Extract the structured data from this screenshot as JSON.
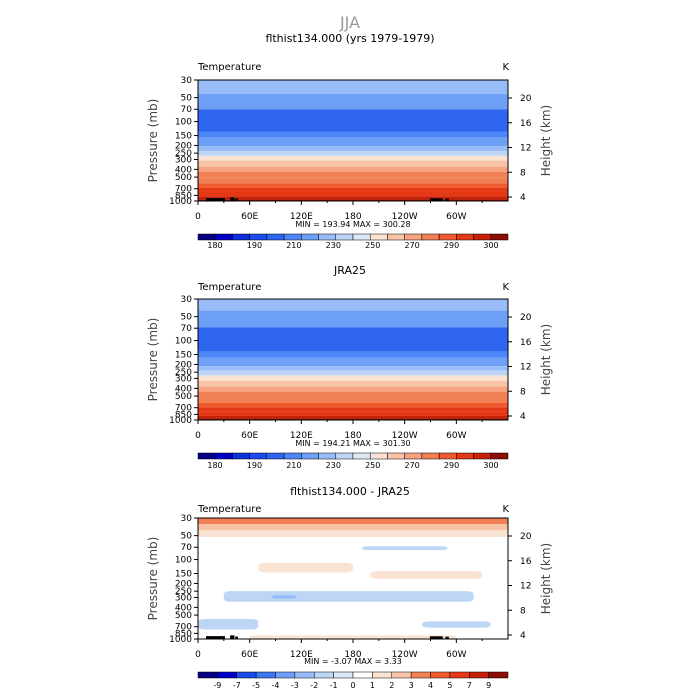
{
  "figure": {
    "title": "JJA"
  },
  "colors": {
    "abs": [
      "#04007f",
      "#0000c4",
      "#0d2fdc",
      "#1b4be9",
      "#2f66f0",
      "#4c86f7",
      "#6fa0f7",
      "#97bcf7",
      "#bed6f6",
      "#dde8f6",
      "#fbe3d4",
      "#f8c4a8",
      "#f6a37f",
      "#f28055",
      "#ef5b2f",
      "#e53915",
      "#c82008",
      "#8a0e02"
    ],
    "diff": [
      "#04007f",
      "#0000c4",
      "#1b4be9",
      "#3c76f3",
      "#6fa0f7",
      "#97bcf7",
      "#bed6f6",
      "#dde8f6",
      "#ffffff",
      "#fbe3d4",
      "#f8c4a8",
      "#f28055",
      "#ef5b2f",
      "#e53915",
      "#c82008",
      "#8a0e02"
    ]
  },
  "chart_data": [
    {
      "type": "heatmap",
      "title": "flthist134.000 (yrs 1979-1979)",
      "variable": "Temperature",
      "units": "K",
      "xlabel": "",
      "ylabel": "Pressure (mb)",
      "ylabel_right": "Height (km)",
      "x_ticks": [
        "0",
        "60E",
        "120E",
        "180",
        "120W",
        "60W"
      ],
      "y_ticks": [
        "30",
        "50",
        "70",
        "100",
        "150",
        "200",
        "250",
        "300",
        "400",
        "500",
        "700",
        "850",
        "1000"
      ],
      "y_ticks_right": [
        "20",
        "16",
        "12",
        "8",
        "4"
      ],
      "stats": "MIN = 193.94   MAX = 300.28",
      "colorbar_labels": [
        "180",
        "190",
        "210",
        "230",
        "250",
        "270",
        "290",
        "300"
      ],
      "layers": [
        {
          "p_top": 30,
          "p_bot": 45,
          "value": 220
        },
        {
          "p_top": 45,
          "p_bot": 70,
          "value": 215
        },
        {
          "p_top": 70,
          "p_bot": 135,
          "value": 205
        },
        {
          "p_top": 135,
          "p_bot": 160,
          "value": 212
        },
        {
          "p_top": 160,
          "p_bot": 205,
          "value": 215
        },
        {
          "p_top": 205,
          "p_bot": 235,
          "value": 222
        },
        {
          "p_top": 235,
          "p_bot": 270,
          "value": 228
        },
        {
          "p_top": 270,
          "p_bot": 310,
          "value": 235
        },
        {
          "p_top": 310,
          "p_bot": 370,
          "value": 245
        },
        {
          "p_top": 370,
          "p_bot": 430,
          "value": 252
        },
        {
          "p_top": 430,
          "p_bot": 510,
          "value": 262
        },
        {
          "p_top": 510,
          "p_bot": 600,
          "value": 268
        },
        {
          "p_top": 600,
          "p_bot": 680,
          "value": 275
        },
        {
          "p_top": 680,
          "p_bot": 770,
          "value": 280
        },
        {
          "p_top": 770,
          "p_bot": 870,
          "value": 285
        },
        {
          "p_top": 870,
          "p_bot": 960,
          "value": 292
        },
        {
          "p_top": 960,
          "p_bot": 1000,
          "value": 298
        }
      ]
    },
    {
      "type": "heatmap",
      "title": "JRA25",
      "variable": "Temperature",
      "units": "K",
      "xlabel": "",
      "ylabel": "Pressure (mb)",
      "ylabel_right": "Height (km)",
      "x_ticks": [
        "0",
        "60E",
        "120E",
        "180",
        "120W",
        "60W"
      ],
      "y_ticks": [
        "30",
        "50",
        "70",
        "100",
        "150",
        "200",
        "250",
        "300",
        "400",
        "500",
        "700",
        "850",
        "1000"
      ],
      "y_ticks_right": [
        "20",
        "16",
        "12",
        "8",
        "4"
      ],
      "stats": "MIN = 194.21   MAX = 301.30",
      "colorbar_labels": [
        "180",
        "190",
        "210",
        "230",
        "250",
        "270",
        "290",
        "300"
      ],
      "layers": [
        {
          "p_top": 30,
          "p_bot": 42,
          "value": 222
        },
        {
          "p_top": 42,
          "p_bot": 68,
          "value": 216
        },
        {
          "p_top": 68,
          "p_bot": 138,
          "value": 205
        },
        {
          "p_top": 138,
          "p_bot": 165,
          "value": 212
        },
        {
          "p_top": 165,
          "p_bot": 210,
          "value": 216
        },
        {
          "p_top": 210,
          "p_bot": 240,
          "value": 222
        },
        {
          "p_top": 240,
          "p_bot": 275,
          "value": 229
        },
        {
          "p_top": 275,
          "p_bot": 320,
          "value": 236
        },
        {
          "p_top": 320,
          "p_bot": 380,
          "value": 245
        },
        {
          "p_top": 380,
          "p_bot": 440,
          "value": 252
        },
        {
          "p_top": 440,
          "p_bot": 520,
          "value": 262
        },
        {
          "p_top": 520,
          "p_bot": 610,
          "value": 268
        },
        {
          "p_top": 610,
          "p_bot": 690,
          "value": 275
        },
        {
          "p_top": 690,
          "p_bot": 780,
          "value": 280
        },
        {
          "p_top": 780,
          "p_bot": 880,
          "value": 286
        },
        {
          "p_top": 880,
          "p_bot": 960,
          "value": 293
        },
        {
          "p_top": 960,
          "p_bot": 1000,
          "value": 299
        }
      ]
    },
    {
      "type": "heatmap",
      "title": "flthist134.000 - JRA25",
      "variable": "Temperature",
      "units": "K",
      "xlabel": "",
      "ylabel": "Pressure (mb)",
      "ylabel_right": "Height (km)",
      "x_ticks": [
        "0",
        "60E",
        "120E",
        "180",
        "120W",
        "60W"
      ],
      "y_ticks": [
        "30",
        "50",
        "70",
        "100",
        "150",
        "200",
        "250",
        "300",
        "400",
        "500",
        "700",
        "850",
        "1000"
      ],
      "y_ticks_right": [
        "20",
        "16",
        "12",
        "8",
        "4"
      ],
      "stats": "MIN =   -3.07   MAX =    3.33",
      "colorbar_labels": [
        "-9",
        "-7",
        "-5",
        "-4",
        "-3",
        "-2",
        "-1",
        "0",
        "1",
        "2",
        "3",
        "4",
        "5",
        "7",
        "9"
      ],
      "layers": [
        {
          "p_top": 30,
          "p_bot": 36,
          "value": 2.5
        },
        {
          "p_top": 36,
          "p_bot": 43,
          "value": 1.5
        },
        {
          "p_top": 43,
          "p_bot": 52,
          "value": 0.5
        },
        {
          "p_top": 52,
          "p_bot": 62,
          "value": -0.5
        },
        {
          "p_top": 62,
          "p_bot": 1000,
          "value": -0.5
        }
      ],
      "patches": [
        {
          "lon": [
            190,
            290
          ],
          "p": [
            68,
            76
          ],
          "value": -1.5
        },
        {
          "lon": [
            70,
            180
          ],
          "p": [
            110,
            145
          ],
          "value": 0.5
        },
        {
          "lon": [
            200,
            330
          ],
          "p": [
            140,
            175
          ],
          "value": 0.5
        },
        {
          "lon": [
            30,
            320
          ],
          "p": [
            250,
            340
          ],
          "value": -1.5
        },
        {
          "lon": [
            85,
            115
          ],
          "p": [
            280,
            310
          ],
          "value": -2.5
        },
        {
          "lon": [
            0,
            70
          ],
          "p": [
            560,
            760
          ],
          "value": -1.5
        },
        {
          "lon": [
            260,
            340
          ],
          "p": [
            600,
            720
          ],
          "value": -1.5
        },
        {
          "lon": [
            60,
            300
          ],
          "p": [
            900,
            1000
          ],
          "value": 0.5
        }
      ]
    }
  ]
}
